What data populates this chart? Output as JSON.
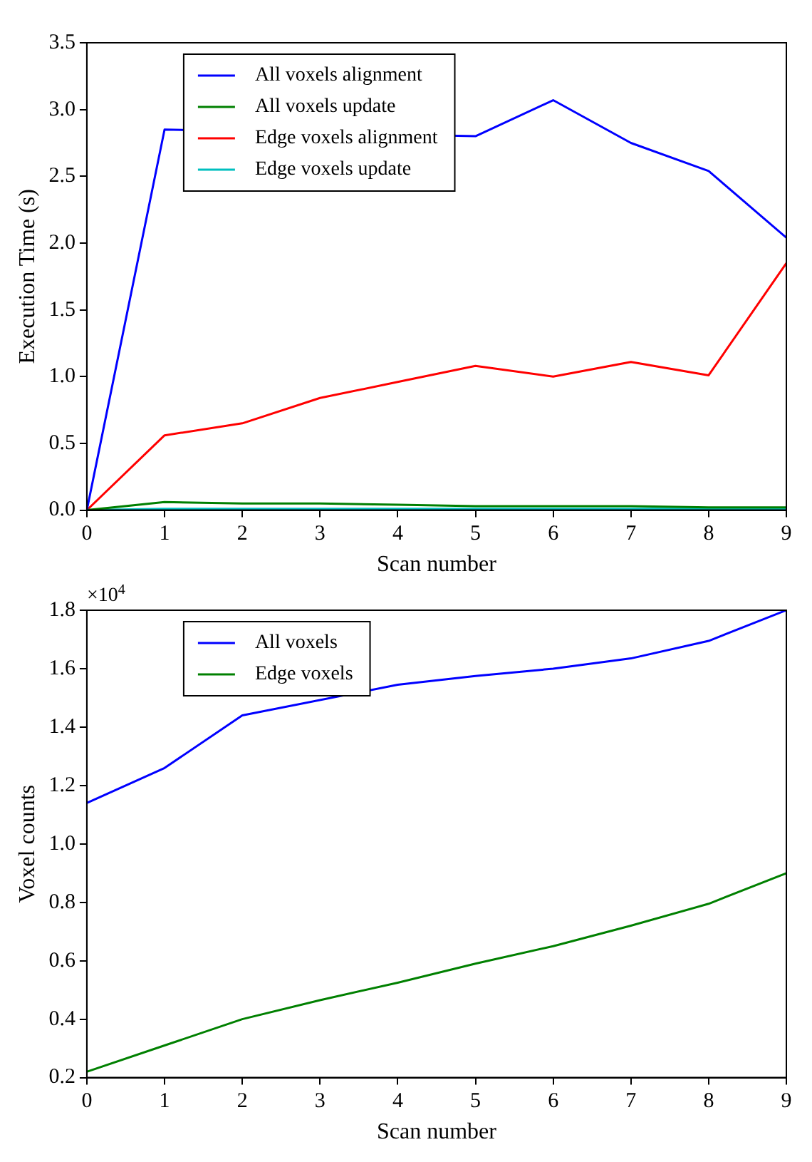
{
  "chart_data": [
    {
      "type": "line",
      "xlabel": "Scan number",
      "ylabel": "Execution Time (s)",
      "x": [
        0,
        1,
        2,
        3,
        4,
        5,
        6,
        7,
        8,
        9
      ],
      "xlim": [
        0,
        9
      ],
      "xticks": [
        0,
        1,
        2,
        3,
        4,
        5,
        6,
        7,
        8,
        9
      ],
      "ylim": [
        0,
        3.5
      ],
      "yticks": [
        {
          "value": 0,
          "label": "0.0"
        },
        {
          "value": 0.5,
          "label": "0.5"
        },
        {
          "value": 1,
          "label": "1.0"
        },
        {
          "value": 1.5,
          "label": "1.5"
        },
        {
          "value": 2,
          "label": "2.0"
        },
        {
          "value": 2.5,
          "label": "2.5"
        },
        {
          "value": 3,
          "label": "3.0"
        },
        {
          "value": 3.5,
          "label": "3.5"
        }
      ],
      "grid": false,
      "legend": "top left",
      "marker": "none",
      "series": [
        {
          "name": "All voxels alignment",
          "color": "#0000ff",
          "values": [
            0,
            2.85,
            null,
            null,
            null,
            2.8,
            3.07,
            2.75,
            2.54,
            2.04
          ]
        },
        {
          "name": "All voxels update",
          "color": "#008000",
          "values": [
            0,
            0.06,
            0.05,
            0.05,
            0.04,
            0.03,
            0.03,
            0.03,
            0.02,
            0.02
          ]
        },
        {
          "name": "Edge voxels alignment",
          "color": "#ff0000",
          "values": [
            0,
            0.56,
            0.65,
            0.84,
            0.96,
            1.08,
            1.0,
            1.11,
            1.01,
            1.85
          ]
        },
        {
          "name": "Edge voxels update",
          "color": "#00bfbf",
          "values": [
            0,
            0.01,
            0.01,
            0.01,
            0.01,
            0.01,
            0.01,
            0.01,
            0.01,
            0.01
          ]
        }
      ]
    },
    {
      "type": "line",
      "xlabel": "Scan number",
      "ylabel": "Voxel counts",
      "annotations": [
        "×10$^{4}$"
      ],
      "x": [
        0,
        1,
        2,
        3,
        4,
        5,
        6,
        7,
        8,
        9
      ],
      "xlim": [
        0,
        9
      ],
      "xticks": [
        0,
        1,
        2,
        3,
        4,
        5,
        6,
        7,
        8,
        9
      ],
      "ylim": [
        0.2,
        1.8
      ],
      "yticks": [
        0.2,
        0.4,
        0.6,
        0.8,
        {
          "value": 1,
          "label": "1.0"
        },
        1.2,
        1.4,
        1.6,
        1.8
      ],
      "grid": false,
      "legend": "top left",
      "marker": "none",
      "series": [
        {
          "name": "All voxels",
          "color": "#0000ff",
          "values": [
            1.14,
            1.26,
            1.44,
            null,
            1.545,
            1.575,
            1.6,
            1.635,
            1.695,
            1.8
          ]
        },
        {
          "name": "Edge voxels",
          "color": "#008000",
          "values": [
            0.22,
            0.31,
            0.4,
            0.465,
            0.525,
            0.59,
            0.65,
            0.72,
            0.795,
            0.9
          ]
        }
      ]
    }
  ]
}
